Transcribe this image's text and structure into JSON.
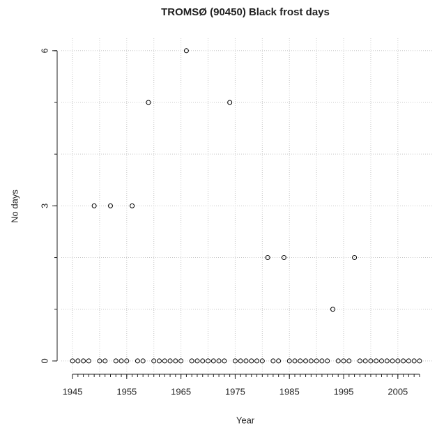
{
  "chart_data": {
    "type": "scatter",
    "title": "TROMSØ (90450) Black frost days",
    "x_label": "Year",
    "y_label": "No days",
    "x": [
      1945,
      1946,
      1947,
      1948,
      1949,
      1950,
      1951,
      1952,
      1953,
      1954,
      1955,
      1956,
      1957,
      1958,
      1959,
      1960,
      1961,
      1962,
      1963,
      1964,
      1965,
      1966,
      1967,
      1968,
      1969,
      1970,
      1971,
      1972,
      1973,
      1974,
      1975,
      1976,
      1977,
      1978,
      1979,
      1980,
      1981,
      1982,
      1983,
      1984,
      1985,
      1986,
      1987,
      1988,
      1989,
      1990,
      1991,
      1992,
      1993,
      1994,
      1995,
      1996,
      1997,
      1998,
      1999,
      2000,
      2001,
      2002,
      2003,
      2004,
      2005,
      2006,
      2007,
      2008,
      2009
    ],
    "values": [
      0,
      0,
      0,
      0,
      3,
      0,
      0,
      3,
      0,
      0,
      0,
      3,
      0,
      0,
      5,
      0,
      0,
      0,
      0,
      0,
      0,
      6,
      0,
      0,
      0,
      0,
      0,
      0,
      0,
      5,
      0,
      0,
      0,
      0,
      0,
      0,
      2,
      0,
      0,
      2,
      0,
      0,
      0,
      0,
      0,
      0,
      0,
      0,
      1,
      0,
      0,
      0,
      2,
      0,
      0,
      0,
      0,
      0,
      0,
      0,
      0,
      0,
      0,
      0,
      0
    ],
    "color": "#000000",
    "xlim": [
      1942.94,
      2011.32
    ],
    "ylim": [
      -0.23,
      6.24
    ],
    "xticks": [
      1945,
      1955,
      1965,
      1975,
      1985,
      1995,
      2005
    ],
    "yticks": [
      0,
      3,
      6
    ],
    "xgrid": [
      1945,
      1950,
      1955,
      1960,
      1965,
      1970,
      1975,
      1980,
      1985,
      1990,
      1995,
      2000,
      2005
    ],
    "ygrid": [
      0,
      1,
      2,
      3,
      4,
      5,
      6
    ],
    "grid": true
  }
}
